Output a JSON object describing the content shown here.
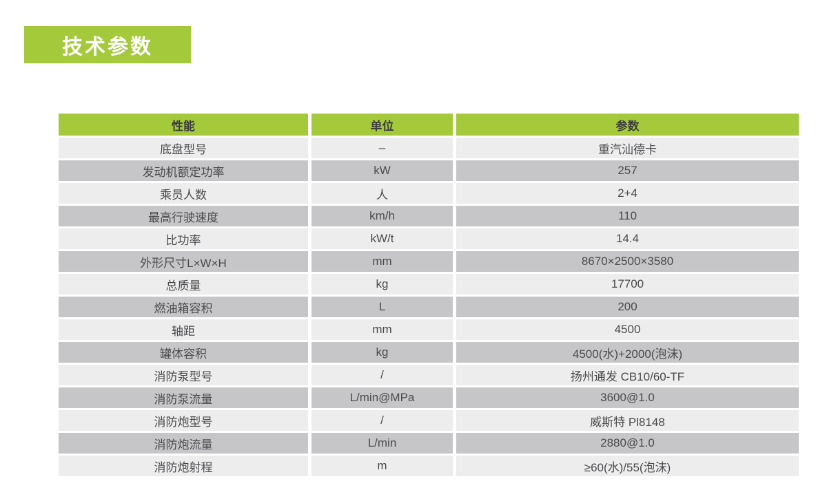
{
  "title_badge": {
    "label": "技术参数",
    "background": "#a4ca3c",
    "text_color": "#ffffff"
  },
  "table": {
    "headers": [
      {
        "key": "performance",
        "label": "性能"
      },
      {
        "key": "unit",
        "label": "单位"
      },
      {
        "key": "parameter",
        "label": "参数"
      }
    ],
    "rows": [
      {
        "performance": "底盘型号",
        "unit": "–",
        "parameter": "重汽汕德卡"
      },
      {
        "performance": "发动机额定功率",
        "unit": "kW",
        "parameter": "257"
      },
      {
        "performance": "乘员人数",
        "unit": "人",
        "parameter": "2+4"
      },
      {
        "performance": "最高行驶速度",
        "unit": "km/h",
        "parameter": "110"
      },
      {
        "performance": "比功率",
        "unit": "kW/t",
        "parameter": "14.4"
      },
      {
        "performance": "外形尺寸L×W×H",
        "unit": "mm",
        "parameter": "8670×2500×3580"
      },
      {
        "performance": "总质量",
        "unit": "kg",
        "parameter": "17700"
      },
      {
        "performance": "燃油箱容积",
        "unit": "L",
        "parameter": "200"
      },
      {
        "performance": "轴距",
        "unit": "mm",
        "parameter": "4500"
      },
      {
        "performance": "罐体容积",
        "unit": "kg",
        "parameter": "4500(水)+2000(泡沫)"
      },
      {
        "performance": "消防泵型号",
        "unit": "/",
        "parameter": "扬州通发 CB10/60-TF"
      },
      {
        "performance": "消防泵流量",
        "unit": "L/min@MPa",
        "parameter": "3600@1.0"
      },
      {
        "performance": "消防炮型号",
        "unit": "/",
        "parameter": "威斯特 Pl8148"
      },
      {
        "performance": "消防炮流量",
        "unit": "L/min",
        "parameter": "2880@1.0"
      },
      {
        "performance": "消防炮射程",
        "unit": "m",
        "parameter": "≥60(水)/55(泡沫)"
      }
    ],
    "colors": {
      "header_bg": "#a4ca3c",
      "header_text": "#3c3c3c",
      "row_light": "#ededee",
      "row_dark": "#c6c6c8",
      "cell_text": "#4b4b4d",
      "grid_gap": "#ffffff"
    }
  }
}
